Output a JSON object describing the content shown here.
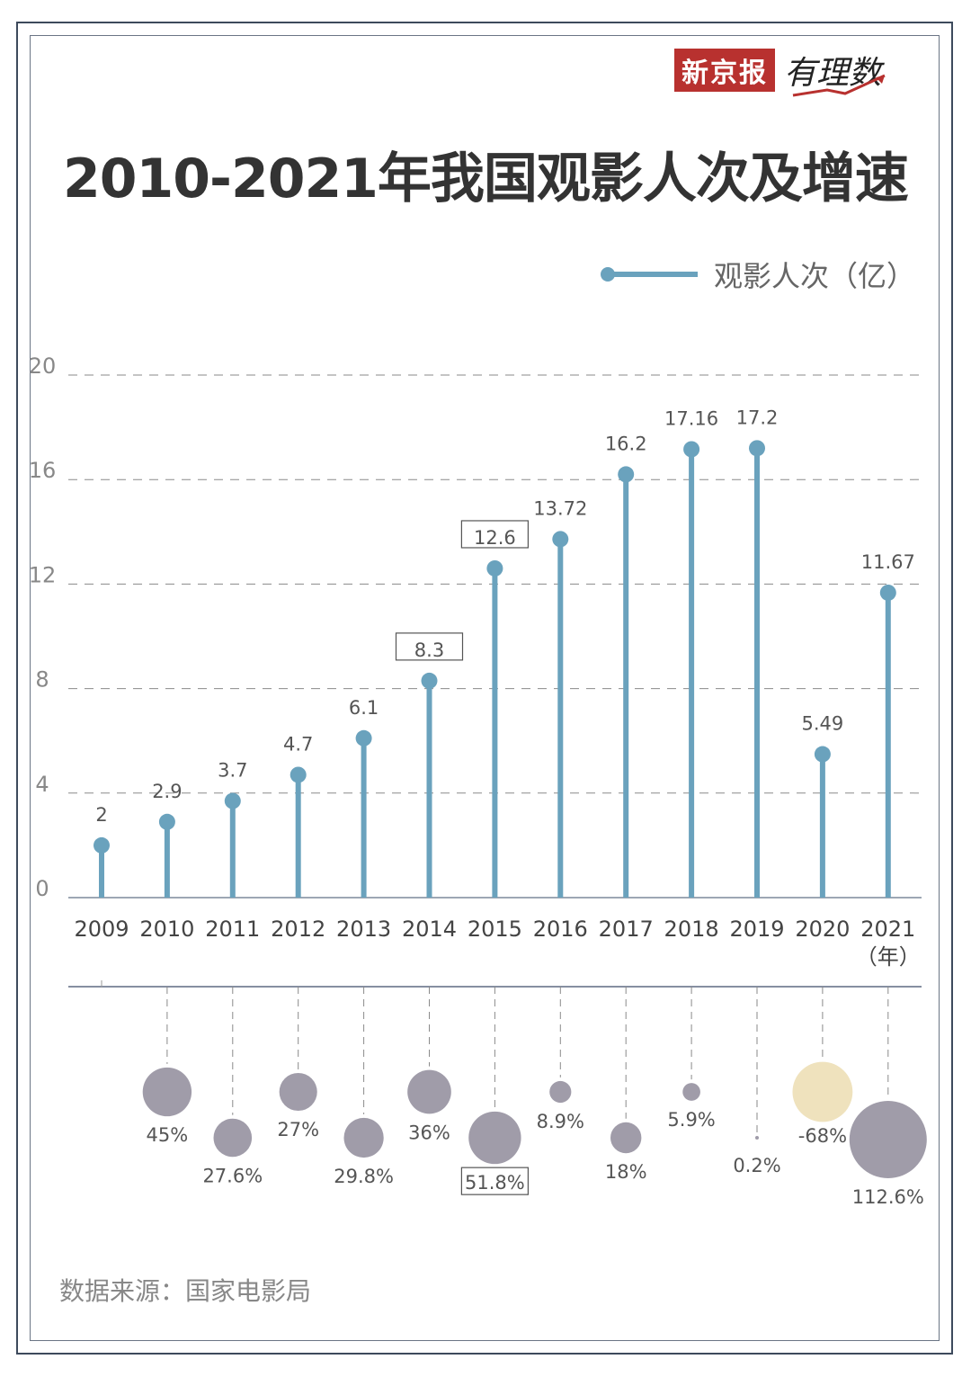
{
  "brand": {
    "name": "新京报",
    "column": "有理数"
  },
  "title": "2010-2021年我国观影人次及增速",
  "legend": {
    "label": "观影人次（亿）"
  },
  "footer": {
    "source": "数据来源：国家电影局"
  },
  "colors": {
    "line": "#6aa2bd",
    "bubble": "#a09ca9",
    "bubble_negative": "#efe2bd",
    "brand": "#b8312f"
  },
  "chart_data": [
    {
      "type": "bar",
      "categories": [
        "2009",
        "2010",
        "2011",
        "2012",
        "2013",
        "2014",
        "2015",
        "2016",
        "2017",
        "2018",
        "2019",
        "2020",
        "2021"
      ],
      "series": [
        {
          "name": "观影人次（亿）",
          "values": [
            2,
            2.9,
            3.7,
            4.7,
            6.1,
            8.3,
            12.6,
            13.72,
            16.2,
            17.16,
            17.2,
            5.49,
            11.67
          ],
          "labels": [
            "2",
            "2.9",
            "3.7",
            "4.7",
            "6.1",
            "8.3",
            "12.6",
            "13.72",
            "16.2",
            "17.16",
            "17.2",
            "5.49",
            "11.67"
          ],
          "boxed_labels": [
            "8.3",
            "12.6"
          ]
        }
      ],
      "yticks": [
        "0",
        "4",
        "8",
        "12",
        "16",
        "20"
      ],
      "ylim": [
        0,
        20
      ],
      "xunit": "（年）",
      "grid": true,
      "legend_position": "top-right"
    },
    {
      "type": "scatter",
      "categories": [
        "2010",
        "2011",
        "2012",
        "2013",
        "2014",
        "2015",
        "2016",
        "2017",
        "2018",
        "2019",
        "2020",
        "2021"
      ],
      "values": [
        45,
        27.6,
        27,
        29.8,
        36,
        51.8,
        8.9,
        18,
        5.9,
        0.2,
        -68,
        112.6
      ],
      "labels": [
        "45%",
        "27.6%",
        "27%",
        "29.8%",
        "36%",
        "51.8%",
        "8.9%",
        "18%",
        "5.9%",
        "0.2%",
        "-68%",
        "112.6%"
      ],
      "boxed_labels": [
        "51.8%"
      ]
    }
  ]
}
